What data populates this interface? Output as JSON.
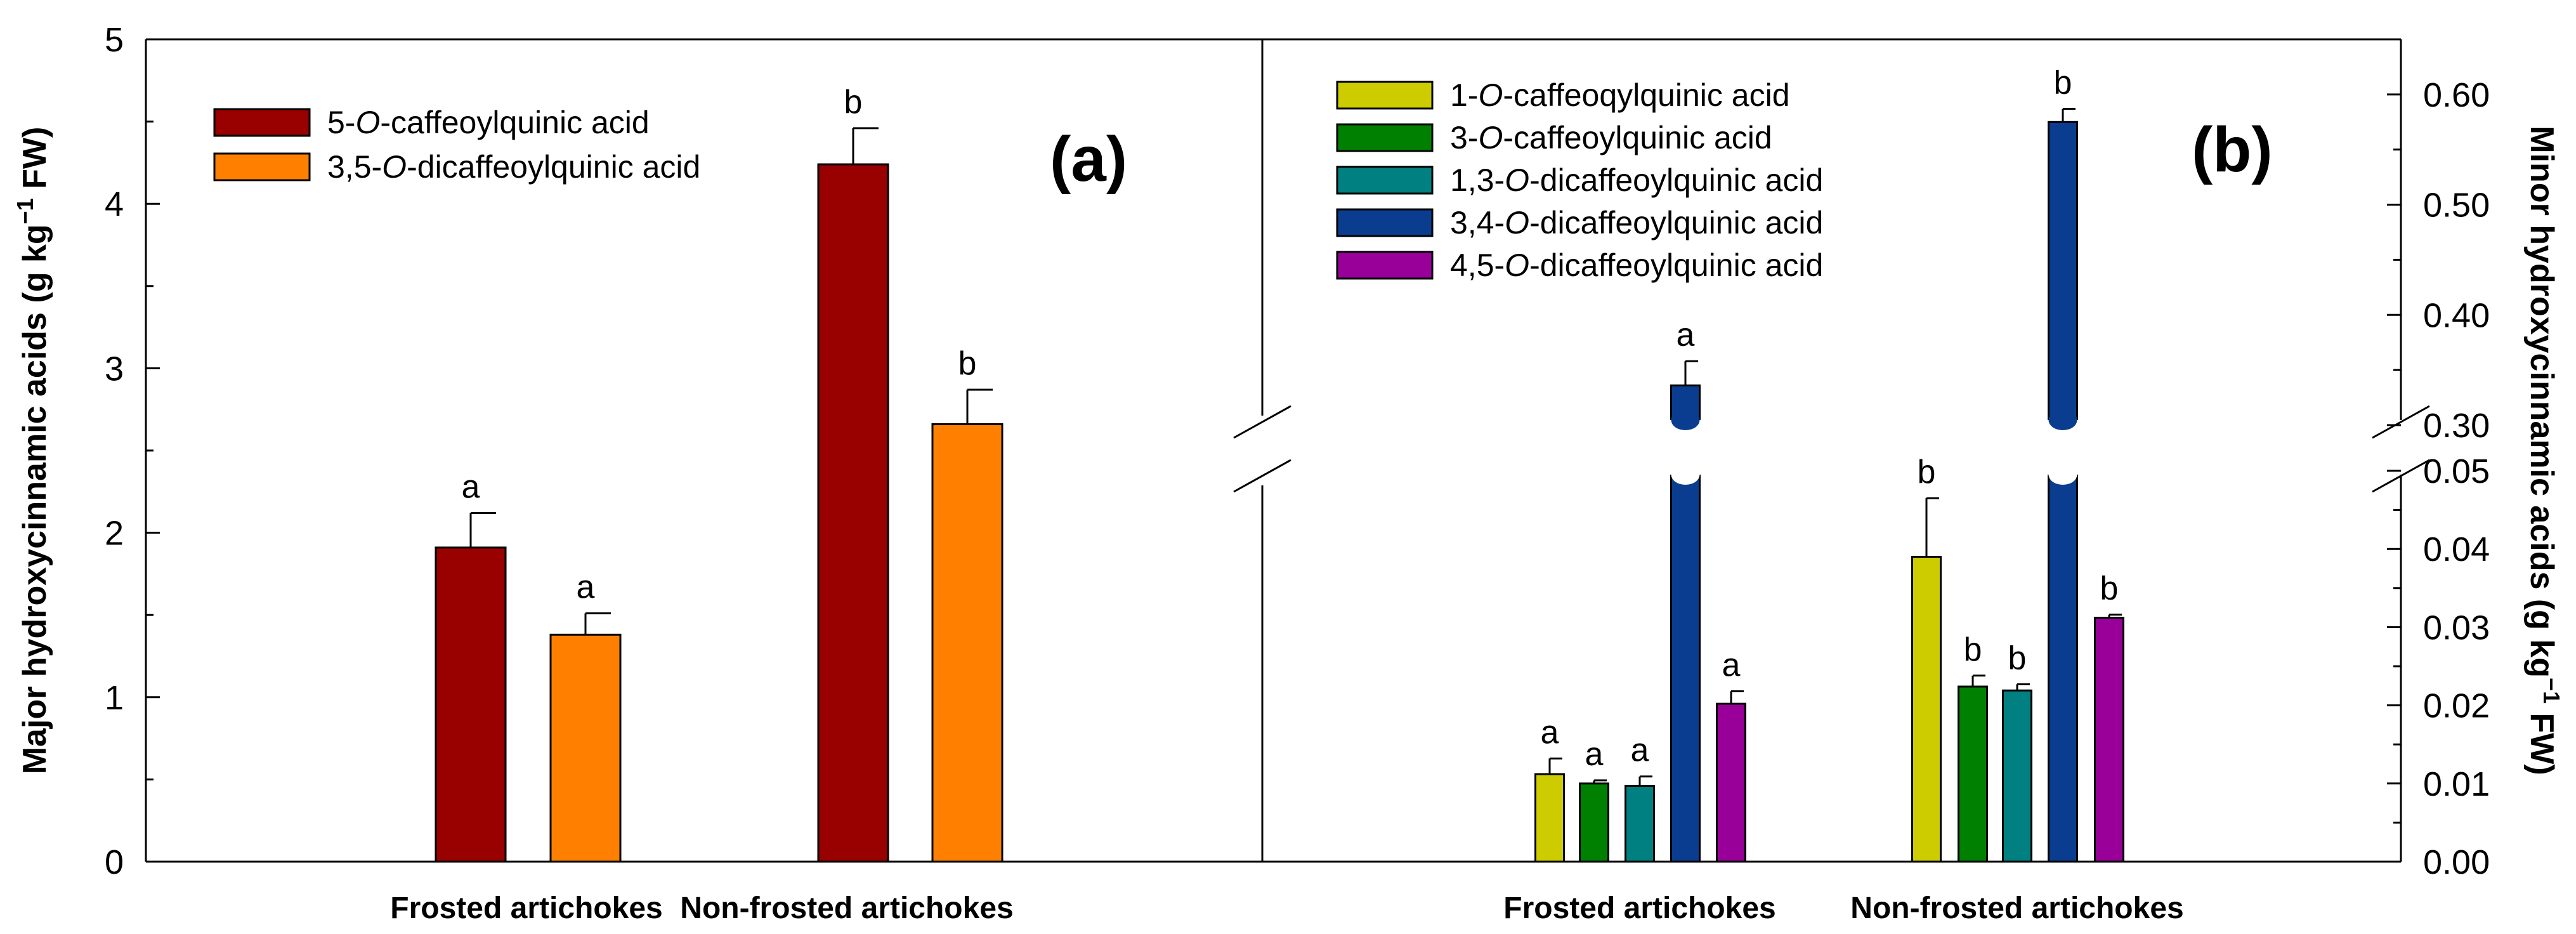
{
  "chart_data": {
    "type": "bar",
    "categories": [
      "Frosted artichokes",
      "Non-frosted artichokes"
    ],
    "left_panel": {
      "panel_label": "(a)",
      "ylabel_prefix": "Major hydroxycinnamic acids (g kg",
      "ylabel_exp": "−1",
      "ylabel_suffix": " FW)",
      "ylim": [
        0,
        5
      ],
      "yticks": [
        "0",
        "1",
        "2",
        "3",
        "4",
        "5"
      ],
      "series": [
        {
          "name_pre": "5-",
          "name_ital": "O",
          "name_post": "-caffeoylquinic acid",
          "color": "#990000",
          "values": [
            1.91,
            4.24
          ],
          "errors": [
            0.21,
            0.22
          ],
          "sig": [
            "a",
            "b"
          ]
        },
        {
          "name_pre": "3,5-",
          "name_ital": "O",
          "name_post": "-dicaffeoylquinic acid",
          "color": "#ff8000",
          "values": [
            1.38,
            2.66
          ],
          "errors": [
            0.13,
            0.21
          ],
          "sig": [
            "a",
            "b"
          ]
        }
      ]
    },
    "right_panel": {
      "panel_label": "(b)",
      "ylabel_prefix": "Minor hydroxycinnamic acids (g kg",
      "ylabel_exp": "−1",
      "ylabel_suffix": " FW)",
      "axis_break": true,
      "ylim_lower": [
        0,
        0.05
      ],
      "ylim_upper": [
        0.3,
        0.65
      ],
      "yticks_lower": [
        "0.00",
        "0.01",
        "0.02",
        "0.03",
        "0.04",
        "0.05"
      ],
      "yticks_upper": [
        "0.30",
        "0.40",
        "0.50",
        "0.60"
      ],
      "series": [
        {
          "name_pre": "1-",
          "name_ital": "O",
          "name_post": "-caffeoqylquinic acid",
          "color": "#cccc00",
          "values": [
            0.0112,
            0.039
          ],
          "errors": [
            0.002,
            0.0075
          ],
          "sig": [
            "a",
            "b"
          ]
        },
        {
          "name_pre": "3-",
          "name_ital": "O",
          "name_post": "-caffeoylquinic acid",
          "color": "#008000",
          "values": [
            0.01,
            0.0224
          ],
          "errors": [
            0.0004,
            0.0014
          ],
          "sig": [
            "a",
            "b"
          ]
        },
        {
          "name_pre": "1,3-",
          "name_ital": "O",
          "name_post": "-dicaffeoylquinic acid",
          "color": "#008080",
          "values": [
            0.0097,
            0.0219
          ],
          "errors": [
            0.0012,
            0.0008
          ],
          "sig": [
            "a",
            "b"
          ]
        },
        {
          "name_pre": "3,4-",
          "name_ital": "O",
          "name_post": "-dicaffeoylquinic acid",
          "color": "#0a3d8f",
          "values": [
            0.336,
            0.575
          ],
          "errors": [
            0.022,
            0.012
          ],
          "sig": [
            "a",
            "b"
          ]
        },
        {
          "name_pre": "4,5-",
          "name_ital": "O",
          "name_post": "-dicaffeoylquinic acid",
          "color": "#990099",
          "values": [
            0.0202,
            0.0312
          ],
          "errors": [
            0.0016,
            0.0004
          ],
          "sig": [
            "a",
            "b"
          ]
        }
      ]
    }
  }
}
